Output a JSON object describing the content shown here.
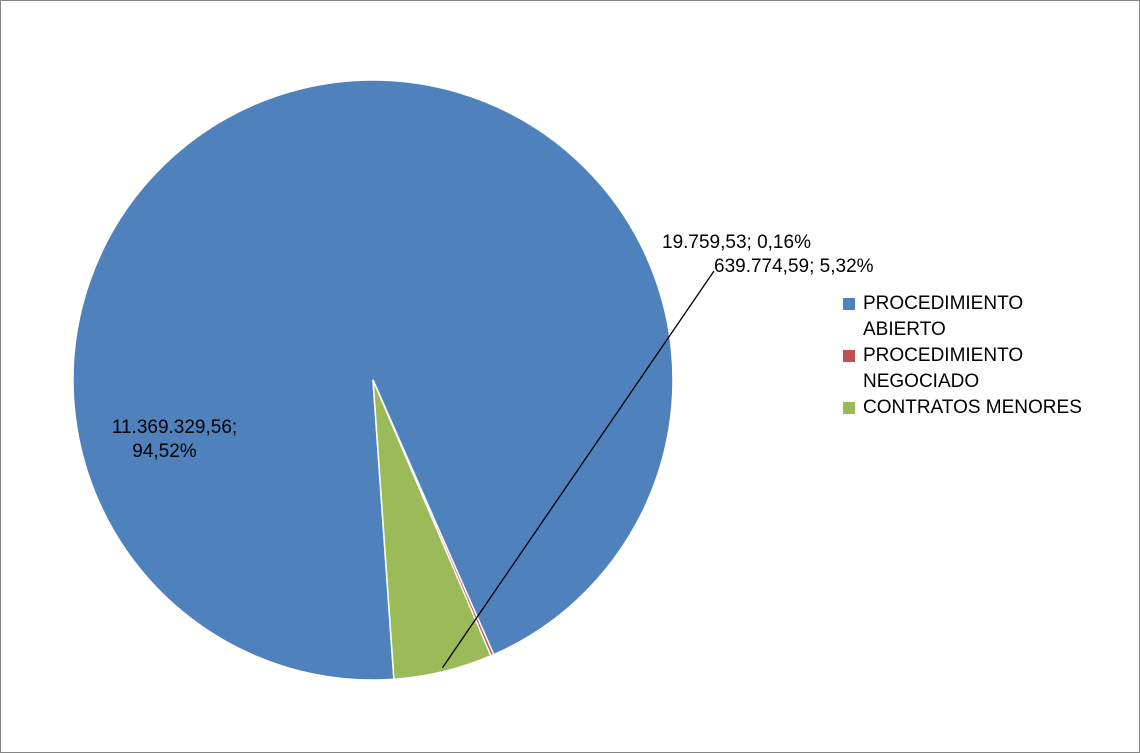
{
  "chart_data": {
    "type": "pie",
    "title": "",
    "series": [
      {
        "name": "",
        "categories": [
          "PROCEDIMIENTO ABIERTO",
          "PROCEDIMIENTO NEGOCIADO",
          "CONTRATOS MENORES"
        ],
        "values": [
          11369329.56,
          19759.53,
          639774.59
        ],
        "percentages": [
          94.52,
          0.16,
          5.32
        ]
      }
    ],
    "data_labels": [
      {
        "value_text": "11.369.329,56;",
        "percent_text": "94,52%"
      },
      {
        "value_text": "19.759,53; 0,16%"
      },
      {
        "value_text": "639.774,59; 5,32%"
      }
    ],
    "legend": {
      "position": "right",
      "entries": [
        {
          "label": "PROCEDIMIENTO ABIERTO",
          "color": "#4F81BD"
        },
        {
          "label": "PROCEDIMIENTO NEGOCIADO",
          "color": "#C0504D"
        },
        {
          "label": "CONTRATOS MENORES",
          "color": "#9BBB59"
        }
      ]
    },
    "colors": [
      "#4F81BD",
      "#C0504D",
      "#9BBB59"
    ]
  }
}
